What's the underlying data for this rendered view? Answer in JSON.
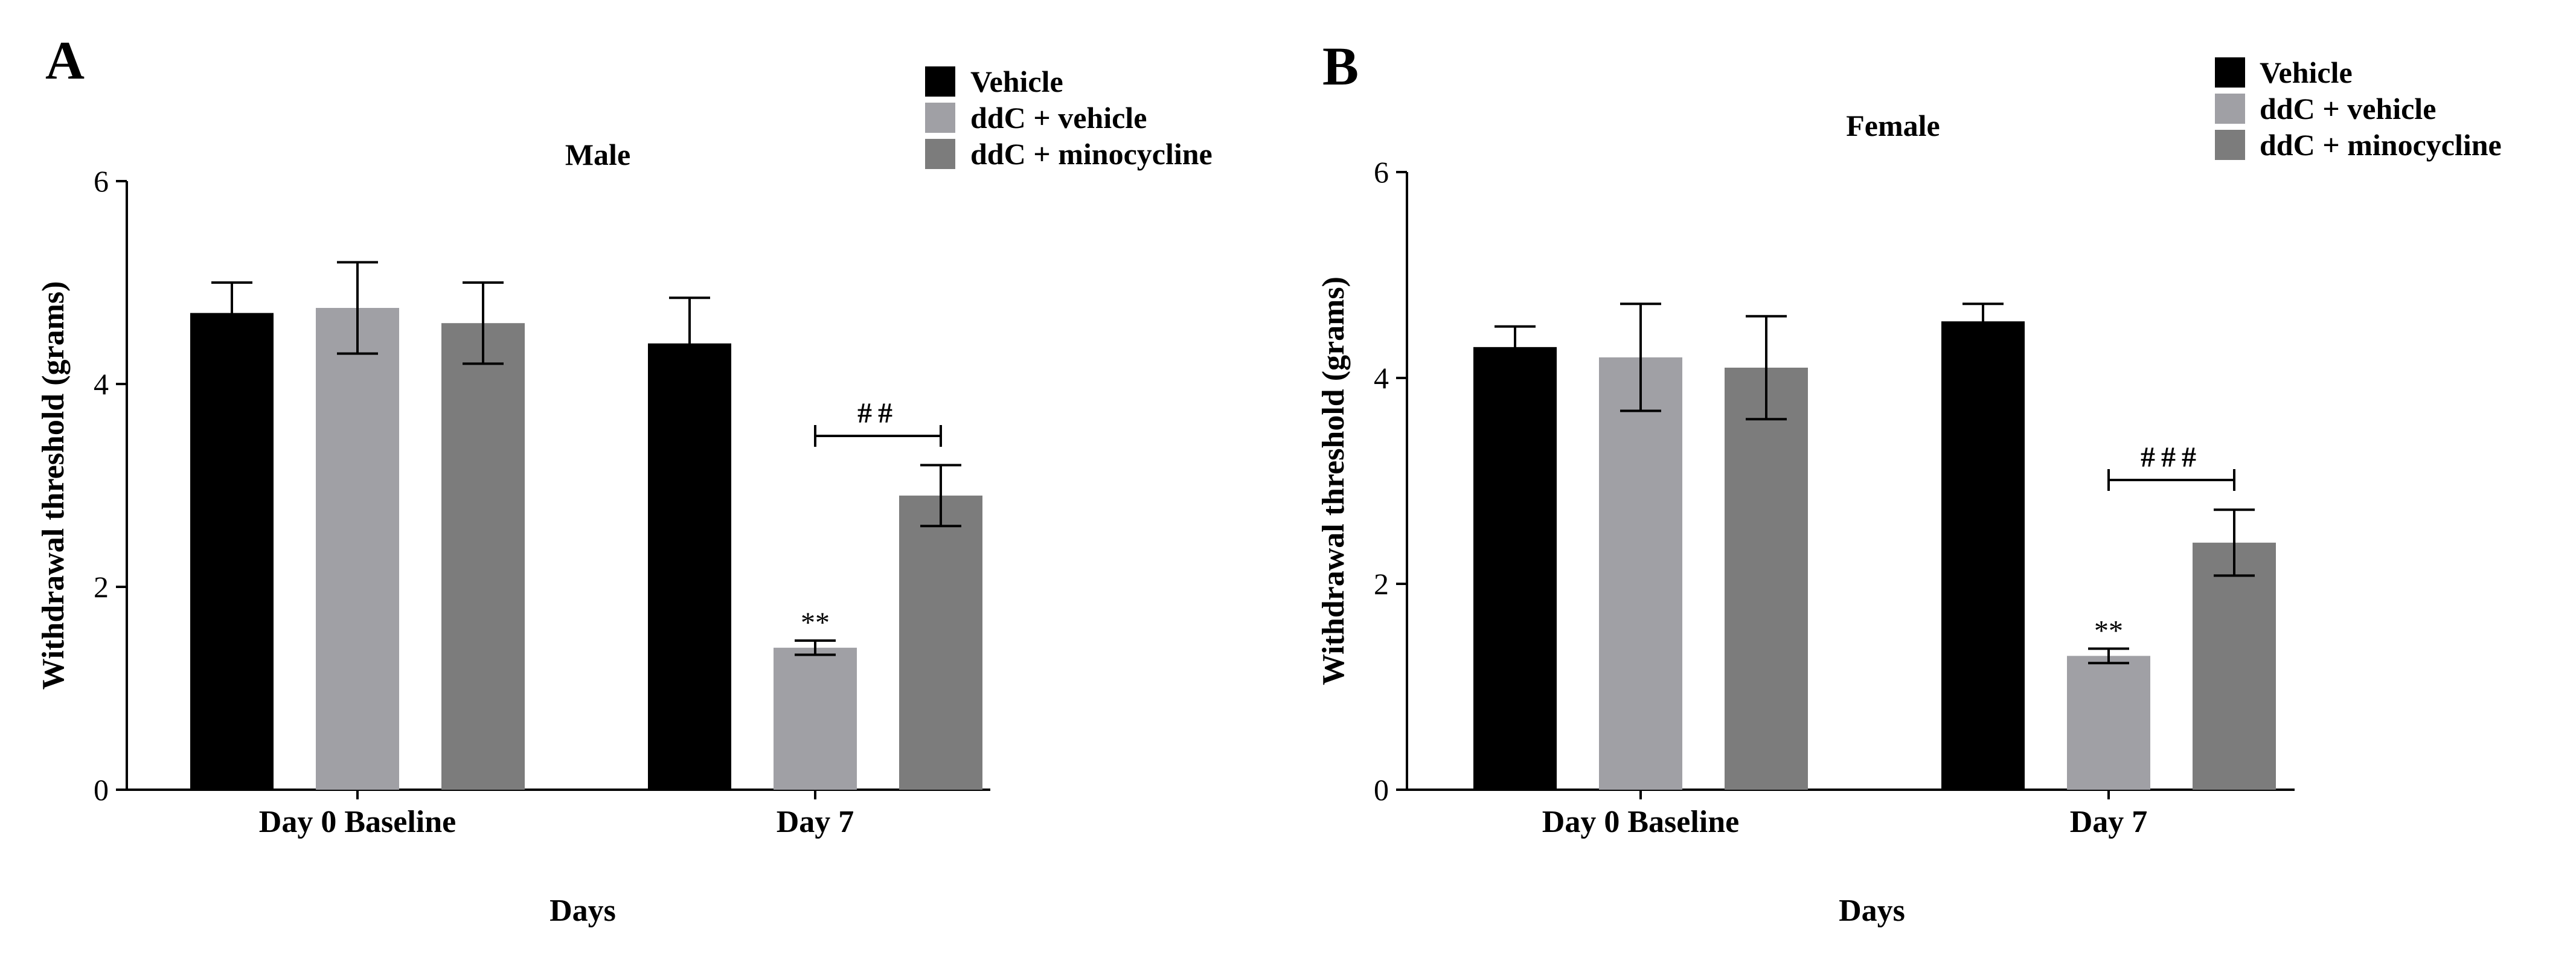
{
  "chart_data": [
    {
      "panel": "A",
      "type": "bar",
      "title": "Male",
      "xlabel": "Days",
      "ylabel": "Withdrawal threshold (grams)",
      "ylim": [
        0,
        6
      ],
      "yticks": [
        "0",
        "2",
        "4",
        "6"
      ],
      "categories": [
        "Day 0 Baseline",
        "Day 7"
      ],
      "series": [
        {
          "name": "Vehicle",
          "values": [
            4.7,
            4.4
          ],
          "errors": [
            0.3,
            0.45
          ],
          "color": "#000000"
        },
        {
          "name": "ddC + vehicle",
          "values": [
            4.75,
            1.4
          ],
          "errors": [
            0.45,
            0.07
          ],
          "color": "#a0a0a5"
        },
        {
          "name": "ddC + minocycline",
          "values": [
            4.6,
            2.9
          ],
          "errors": [
            0.4,
            0.3
          ],
          "color": "#7c7c7c"
        }
      ],
      "annotations": [
        {
          "text": "**",
          "category": 1,
          "series": 1
        },
        {
          "text": "##",
          "category": 1,
          "from_series": 1,
          "to_series": 2
        }
      ],
      "legend_position": "top-right",
      "grid": false
    },
    {
      "panel": "B",
      "type": "bar",
      "title": "Female",
      "xlabel": "Days",
      "ylabel": "Withdrawal threshold (grams)",
      "ylim": [
        0,
        6
      ],
      "yticks": [
        "0",
        "2",
        "4",
        "6"
      ],
      "categories": [
        "Day 0 Baseline",
        "Day 7"
      ],
      "series": [
        {
          "name": "Vehicle",
          "values": [
            4.3,
            4.55
          ],
          "errors": [
            0.2,
            0.17
          ],
          "color": "#000000"
        },
        {
          "name": "ddC + vehicle",
          "values": [
            4.2,
            1.3
          ],
          "errors": [
            0.52,
            0.07
          ],
          "color": "#a0a0a5"
        },
        {
          "name": "ddC + minocycline",
          "values": [
            4.1,
            2.4
          ],
          "errors": [
            0.5,
            0.32
          ],
          "color": "#7c7c7c"
        }
      ],
      "annotations": [
        {
          "text": "**",
          "category": 1,
          "series": 1
        },
        {
          "text": "###",
          "category": 1,
          "from_series": 1,
          "to_series": 2
        }
      ],
      "legend_position": "top-right",
      "grid": false
    }
  ]
}
